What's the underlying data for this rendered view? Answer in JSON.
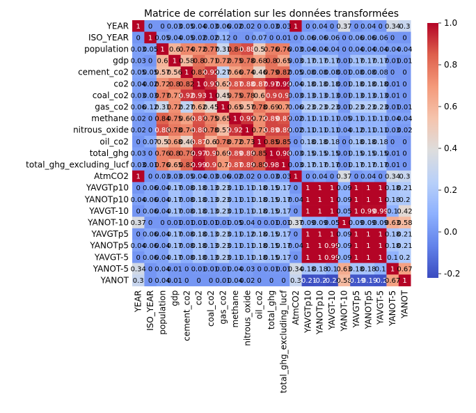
{
  "chart_data": {
    "type": "heatmap",
    "title": "Matrice de corrélation sur les données transformées",
    "variables": [
      "YEAR",
      "ISO_YEAR",
      "population",
      "gdp",
      "cement_co2",
      "co2",
      "coal_co2",
      "gas_co2",
      "methane",
      "nitrous_oxide",
      "oil_co2",
      "total_ghg",
      "total_ghg_excluding_lucf",
      "AtmCO2",
      "YAVGTp10",
      "YANOTp10",
      "YAVGT-10",
      "YANOT-10",
      "YAVGTp5",
      "YANOTp5",
      "YAVGT-5",
      "YANOT-5",
      "YANOT"
    ],
    "colorbar": {
      "min": -0.22,
      "max": 1.0,
      "ticks": [
        1.0,
        0.8,
        0.6,
        0.4,
        0.2,
        0.0,
        -0.2
      ]
    },
    "colormap": "coolwarm",
    "annotated": true,
    "matrix": [
      [
        1,
        0,
        0.0,
        0.03,
        0.05,
        0.04,
        0.03,
        0.06,
        0.02,
        0.02,
        0.0,
        0.03,
        0.03,
        1,
        0.0,
        0.04,
        0.0,
        0.37,
        0.0,
        0.04,
        0.0,
        0.34,
        0.3
      ],
      [
        0,
        1,
        0.05,
        0.04,
        0.05,
        0.02,
        0.02,
        0.12,
        0.0,
        0.0,
        0.07,
        0.0,
        0.01,
        0.0,
        0.06,
        0.06,
        0.06,
        0.0,
        0.06,
        0.06,
        0.06,
        0.0,
        0.0
      ],
      [
        0.03,
        0.05,
        1,
        0.6,
        0.74,
        0.72,
        0.77,
        0.31,
        0.84,
        0.88,
        0.5,
        0.76,
        0.76,
        0.03,
        0.04,
        0.04,
        0.04,
        0.0,
        0.04,
        0.04,
        0.04,
        0.04,
        0.04
      ],
      [
        0.03,
        0.0,
        0.6,
        1,
        0.58,
        0.8,
        0.71,
        0.72,
        0.75,
        0.78,
        0.68,
        0.8,
        0.65,
        0.03,
        0.17,
        0.17,
        0.17,
        0.01,
        0.17,
        0.17,
        0.17,
        0.01,
        0.01
      ],
      [
        0.05,
        0.05,
        0.57,
        0.56,
        1,
        0.82,
        0.92,
        0.27,
        0.66,
        0.74,
        0.46,
        0.79,
        0.82,
        0.05,
        0.08,
        0.08,
        0.08,
        0.01,
        0.08,
        0.08,
        0.08,
        0.0,
        0.0
      ],
      [
        0.04,
        0.02,
        0.72,
        0.8,
        0.82,
        1,
        0.93,
        0.62,
        0.87,
        0.88,
        0.87,
        0.97,
        0.99,
        0.04,
        0.18,
        0.18,
        0.18,
        0.01,
        0.18,
        0.18,
        0.18,
        0.01,
        0.0
      ],
      [
        0.03,
        0.03,
        0.77,
        0.71,
        0.92,
        0.93,
        1,
        0.45,
        0.75,
        0.78,
        0.6,
        0.9,
        0.9,
        0.03,
        0.13,
        0.13,
        0.13,
        0.01,
        0.13,
        0.13,
        0.13,
        0.01,
        0.0
      ],
      [
        0.06,
        0.12,
        0.31,
        0.72,
        0.27,
        0.62,
        0.45,
        1,
        0.65,
        0.57,
        0.78,
        0.69,
        0.7,
        0.06,
        0.23,
        0.23,
        0.23,
        0.01,
        0.23,
        0.23,
        0.23,
        0.01,
        0.01
      ],
      [
        0.02,
        0.0,
        0.84,
        0.75,
        0.66,
        0.87,
        0.75,
        0.65,
        1,
        0.92,
        0.72,
        0.89,
        0.87,
        0.02,
        0.11,
        0.11,
        0.11,
        0.05,
        0.11,
        0.11,
        0.11,
        0.04,
        0.04
      ],
      [
        0.02,
        0.0,
        0.88,
        0.78,
        0.74,
        0.88,
        0.78,
        0.57,
        0.92,
        1,
        0.73,
        0.89,
        0.89,
        0.02,
        0.11,
        0.11,
        0.11,
        0.04,
        0.12,
        0.11,
        0.11,
        0.03,
        0.02
      ],
      [
        0.0,
        0.07,
        0.5,
        0.68,
        0.46,
        0.87,
        0.6,
        0.78,
        0.72,
        0.73,
        1,
        0.85,
        0.85,
        0.0,
        0.18,
        0.18,
        0.18,
        0.0,
        0.18,
        0.18,
        0.18,
        0.0,
        0.0
      ],
      [
        0.03,
        0.0,
        0.76,
        0.8,
        0.79,
        0.97,
        0.9,
        0.69,
        0.89,
        0.89,
        0.85,
        1,
        0.98,
        0.03,
        0.15,
        0.15,
        0.15,
        0.01,
        0.15,
        0.15,
        0.15,
        0.01,
        0.0
      ],
      [
        0.03,
        0.01,
        0.76,
        0.65,
        0.82,
        0.99,
        0.9,
        0.7,
        0.87,
        0.89,
        0.85,
        0.98,
        1,
        0.03,
        0.17,
        0.17,
        0.17,
        0.01,
        0.17,
        0.17,
        0.17,
        0.01,
        0.0
      ],
      [
        1,
        0.0,
        0.03,
        0.03,
        0.05,
        0.04,
        0.03,
        0.06,
        0.02,
        0.02,
        0.0,
        0.03,
        0.03,
        1,
        0.0,
        0.04,
        0.0,
        0.37,
        0.0,
        0.04,
        0.0,
        0.34,
        0.3
      ],
      [
        0.0,
        0.06,
        0.04,
        0.17,
        0.08,
        0.18,
        0.13,
        0.23,
        0.11,
        0.11,
        0.18,
        0.15,
        0.17,
        0.0,
        1,
        1,
        1,
        0.09,
        1,
        1,
        1,
        0.18,
        0.21
      ],
      [
        0.04,
        0.06,
        0.04,
        0.17,
        0.08,
        0.18,
        0.13,
        0.23,
        0.11,
        0.11,
        0.18,
        0.15,
        0.17,
        0.04,
        1,
        1,
        1,
        0.09,
        1,
        1,
        1,
        0.18,
        0.2
      ],
      [
        0.0,
        0.06,
        0.04,
        0.17,
        0.08,
        0.18,
        0.13,
        0.23,
        0.11,
        0.11,
        0.18,
        0.15,
        0.17,
        0.0,
        1,
        1,
        1,
        0.05,
        1,
        0.99,
        0.99,
        0.1,
        0.42
      ],
      [
        0.37,
        0.0,
        0.0,
        0.01,
        0.01,
        0.01,
        0.01,
        0.01,
        0.05,
        0.04,
        0.0,
        0.01,
        0.01,
        0.37,
        0.09,
        0.09,
        0.05,
        1,
        0.09,
        0.09,
        0.09,
        0.63,
        0.58
      ],
      [
        0.0,
        0.06,
        0.04,
        0.17,
        0.08,
        0.18,
        0.13,
        0.23,
        0.11,
        0.12,
        0.18,
        0.15,
        0.17,
        0.0,
        1,
        1,
        1,
        0.09,
        1,
        1,
        1,
        0.18,
        0.21
      ],
      [
        0.04,
        0.06,
        0.04,
        0.17,
        0.08,
        0.18,
        0.13,
        0.23,
        0.11,
        0.11,
        0.18,
        0.15,
        0.17,
        0.04,
        1,
        1,
        0.99,
        0.09,
        1,
        1,
        1,
        0.18,
        0.21
      ],
      [
        0.0,
        0.06,
        0.04,
        0.17,
        0.08,
        0.18,
        0.13,
        0.23,
        0.11,
        0.11,
        0.18,
        0.15,
        0.17,
        0.0,
        1,
        1,
        0.99,
        0.09,
        1,
        1,
        1,
        0.1,
        0.2
      ],
      [
        0.34,
        0.0,
        0.04,
        0.01,
        0.0,
        0.01,
        0.01,
        0.01,
        0.04,
        0.03,
        0.0,
        0.01,
        0.01,
        0.34,
        0.18,
        0.18,
        0.1,
        0.63,
        0.18,
        0.18,
        0.1,
        1,
        0.67
      ],
      [
        0.3,
        0.0,
        0.04,
        0.01,
        0.0,
        0.0,
        0.0,
        0.01,
        0.04,
        0.02,
        0.0,
        0.0,
        0.0,
        0.3,
        -0.21,
        -0.2,
        -0.22,
        0.58,
        -0.19,
        -0.19,
        -0.2,
        0.67,
        1
      ]
    ]
  }
}
